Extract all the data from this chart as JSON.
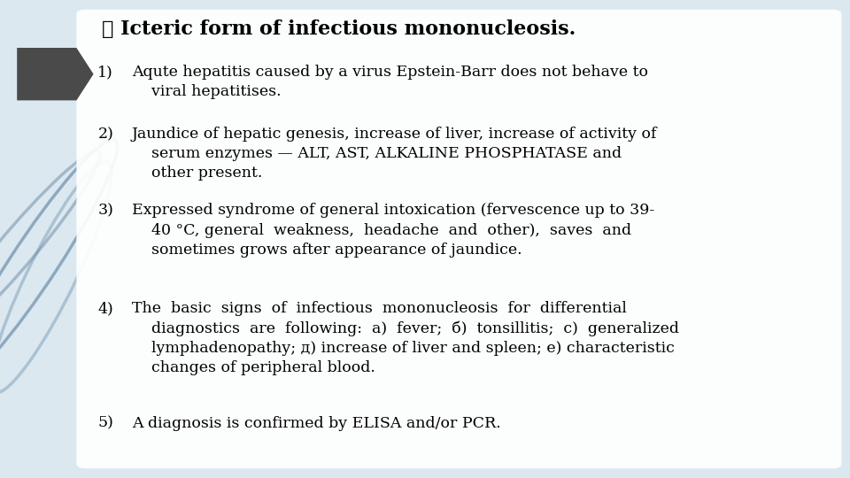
{
  "title": "➤ Icteric form of infectious mononucleosis.",
  "lines": [
    {
      "num": "1)",
      "text": "Aqute hepatitis caused by a virus Epstein-Barr does not behave to\n    viral hepatitises."
    },
    {
      "num": "2)",
      "text": "Jaundice of hepatic genesis, increase of liver, increase of activity of\n    serum enzymes — ALT, AST, ALKALINE PHOSPHATASE and\n    other present."
    },
    {
      "num": "3)",
      "text": "Expressed syndrome of general intoxication (fervescence up to 39-\n    40 °C, general  weakness,  headache  and  other),  saves  and\n    sometimes grows after appearance of jaundice."
    },
    {
      "num": "4)",
      "text": "The  basic  signs  of  infectious  mononucleosis  for  differential\n    diagnostics  are  following:  a)  fever;  б)  tonsillitis;  c)  generalized\n    lymphadenopathy; д) increase of liver and spleen; e) characteristic\n    changes of peripheral blood."
    },
    {
      "num": "5)",
      "text": "A diagnosis is confirmed by ELISA and/or PCR."
    }
  ],
  "bg_color": "#dce8f0",
  "text_color": "#000000",
  "title_color": "#000000",
  "arrow_color": "#555555",
  "left_deco_color": "#6e8fa8",
  "figsize": [
    9.6,
    5.4
  ],
  "dpi": 100
}
